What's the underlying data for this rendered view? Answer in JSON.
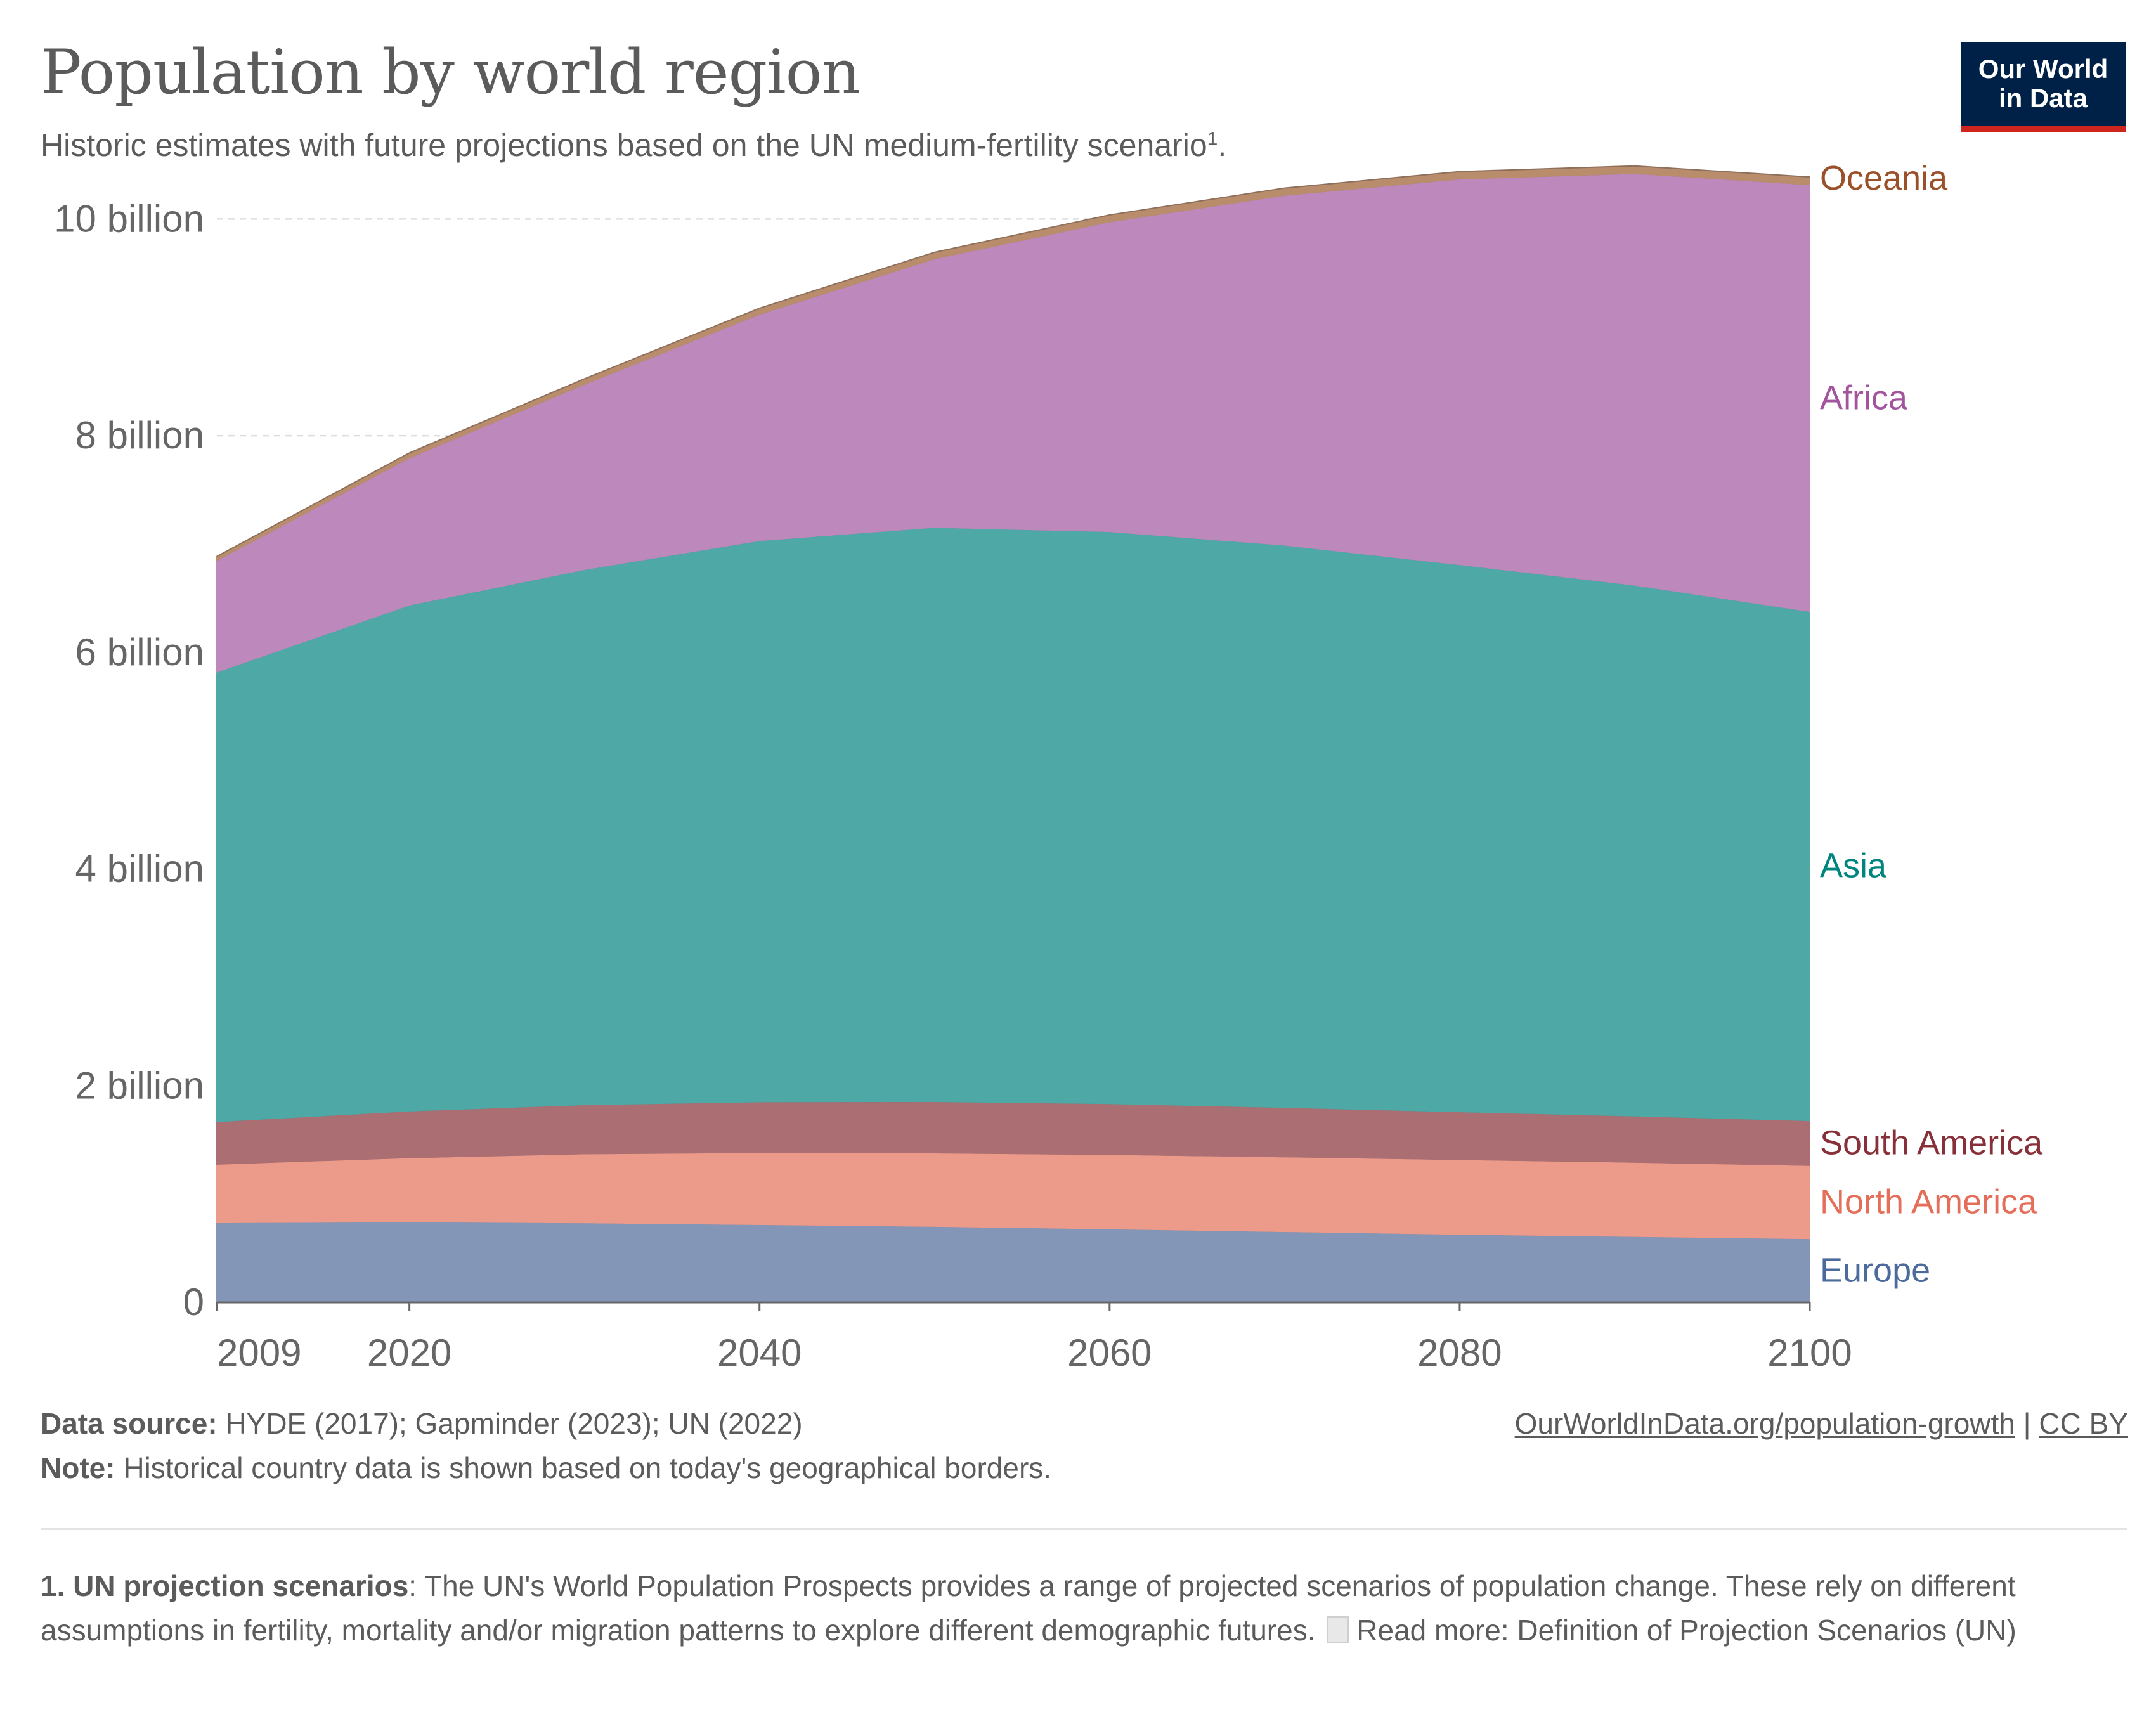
{
  "header": {
    "title": "Population by world region",
    "subtitle": "Historic estimates with future projections based on the UN medium-fertility scenario",
    "subtitle_note_marker": "1",
    "subtitle_end": "."
  },
  "logo": {
    "line1": "Our World",
    "line2": "in Data",
    "bg_color": "#002147",
    "accent_color": "#ce261e"
  },
  "chart_data": {
    "type": "area",
    "stacked": true,
    "x": [
      2009,
      2020,
      2030,
      2040,
      2050,
      2060,
      2070,
      2080,
      2090,
      2100
    ],
    "x_ticks": [
      "2009",
      "2020",
      "2040",
      "2060",
      "2080",
      "2100"
    ],
    "y_ticks": [
      "0",
      "2 billion",
      "4 billion",
      "6 billion",
      "8 billion",
      "10 billion"
    ],
    "ylim": [
      0,
      10.5
    ],
    "y_unit": "billion",
    "grid": "horizontal dashed",
    "legend": "inline labels at right end",
    "series": [
      {
        "name": "Europe",
        "color": "#8396b8",
        "label_color": "#4c6a9c",
        "values": [
          0.737,
          0.745,
          0.736,
          0.72,
          0.703,
          0.68,
          0.655,
          0.63,
          0.61,
          0.59
        ]
      },
      {
        "name": "North America",
        "color": "#ec9b8b",
        "label_color": "#e56e5a",
        "values": [
          0.54,
          0.592,
          0.637,
          0.665,
          0.678,
          0.687,
          0.69,
          0.69,
          0.685,
          0.676
        ]
      },
      {
        "name": "South America",
        "color": "#ab6e72",
        "label_color": "#883039",
        "values": [
          0.393,
          0.431,
          0.453,
          0.468,
          0.474,
          0.469,
          0.456,
          0.441,
          0.427,
          0.413
        ]
      },
      {
        "name": "Asia",
        "color": "#4ea8a5",
        "label_color": "#00847e",
        "values": [
          4.15,
          4.67,
          4.94,
          5.18,
          5.3,
          5.28,
          5.19,
          5.05,
          4.9,
          4.7
        ]
      },
      {
        "name": "Africa",
        "color": "#bd88bb",
        "label_color": "#a2559c",
        "values": [
          1.03,
          1.36,
          1.71,
          2.09,
          2.48,
          2.86,
          3.23,
          3.56,
          3.8,
          3.94
        ]
      },
      {
        "name": "Oceania",
        "color": "#b98c6c",
        "label_color": "#9a5129",
        "values": [
          0.036,
          0.043,
          0.049,
          0.054,
          0.058,
          0.062,
          0.065,
          0.067,
          0.068,
          0.069
        ]
      }
    ]
  },
  "footer": {
    "source_label": "Data source:",
    "source_text": "HYDE (2017); Gapminder (2023); UN (2022)",
    "note_label": "Note:",
    "note_text": "Historical country data is shown based on today's geographical borders.",
    "url": "OurWorldInData.org/population-growth",
    "separator": "|",
    "license": "CC BY"
  },
  "footnote": {
    "label": "1. UN projection scenarios",
    "text": ": The UN's World Population Prospects provides a range of projected scenarios of population change. These rely on different assumptions in fertility, mortality and/or migration patterns to explore different demographic futures.",
    "read_more": "Read more: Definition of Projection Scenarios (UN)"
  }
}
